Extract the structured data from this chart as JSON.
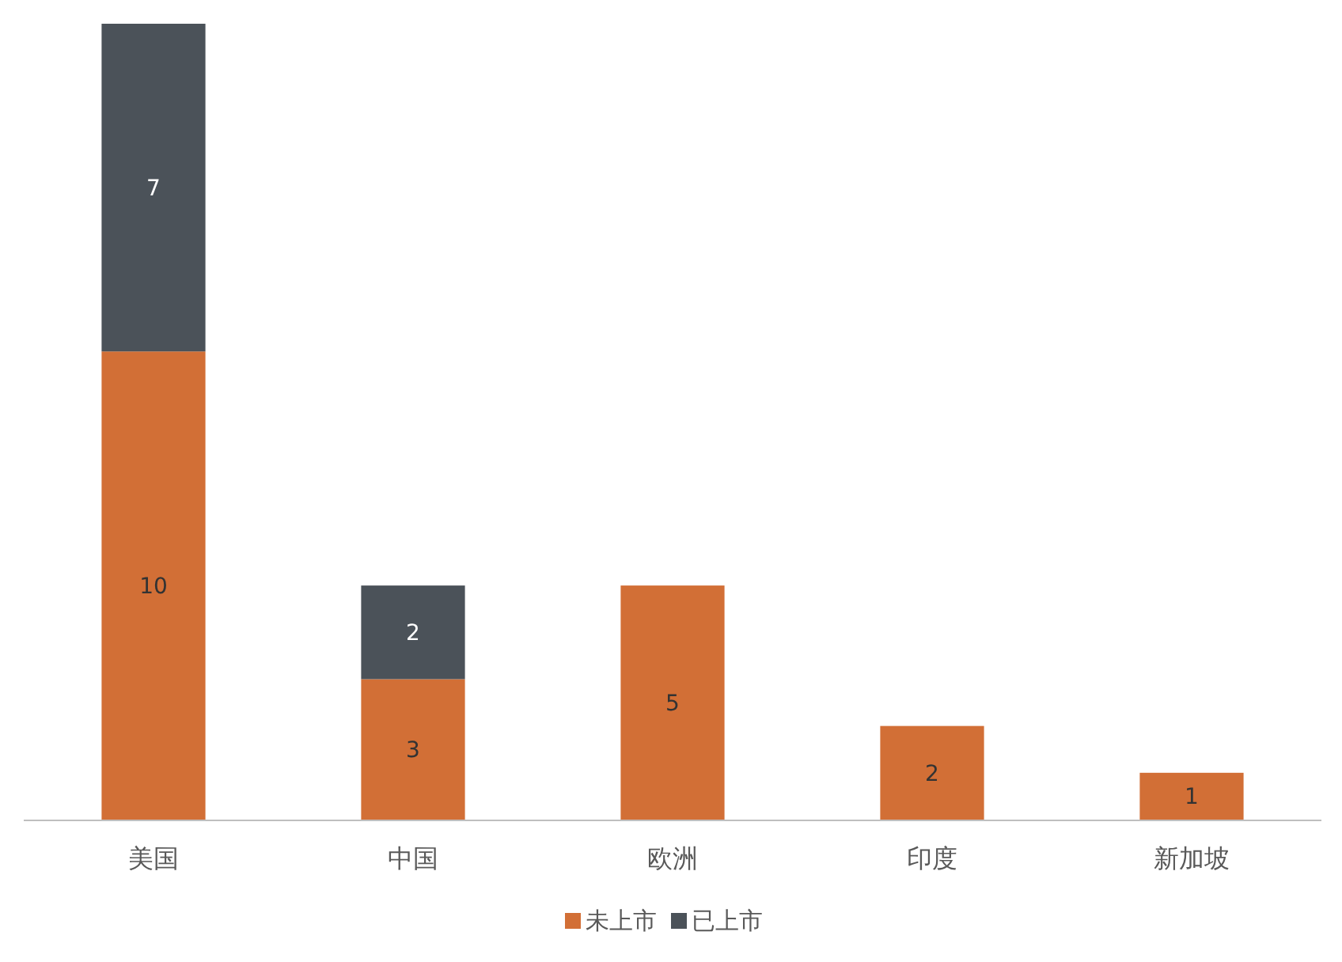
{
  "chart_data": {
    "type": "bar",
    "stacked": true,
    "data_labels": true,
    "legend": "bottom",
    "categories": [
      "美国",
      "中国",
      "欧洲",
      "印度",
      "新加坡"
    ],
    "series": [
      {
        "name": "未上市",
        "color": "#d26f36",
        "values": [
          10,
          3,
          5,
          2,
          1
        ]
      },
      {
        "name": "已上市",
        "color": "#4b5259",
        "values": [
          7,
          2,
          null,
          null,
          null
        ]
      }
    ]
  }
}
